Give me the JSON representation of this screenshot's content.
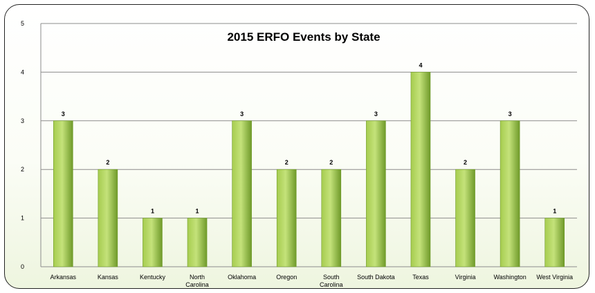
{
  "chart_data": {
    "type": "bar",
    "title": "2015 ERFO Events by State",
    "categories": [
      "Arkansas",
      "Kansas",
      "Kentucky",
      "North Carolina",
      "Oklahoma",
      "Oregon",
      "South Carolina",
      "South Dakota",
      "Texas",
      "Virginia",
      "Washington",
      "West Virginia"
    ],
    "category_label_lines": [
      [
        "Arkansas"
      ],
      [
        "Kansas"
      ],
      [
        "Kentucky"
      ],
      [
        "North",
        "Carolina"
      ],
      [
        "Oklahoma"
      ],
      [
        "Oregon"
      ],
      [
        "South",
        "Carolina"
      ],
      [
        "South Dakota"
      ],
      [
        "Texas"
      ],
      [
        "Virginia"
      ],
      [
        "Washington"
      ],
      [
        "West Virginia"
      ]
    ],
    "values": [
      3,
      2,
      1,
      1,
      3,
      2,
      2,
      3,
      4,
      2,
      3,
      1
    ],
    "data_labels": [
      "3",
      "2",
      "1",
      "1",
      "3",
      "2",
      "2",
      "3",
      "4",
      "2",
      "3",
      "1"
    ],
    "ylim": [
      0,
      5
    ],
    "yticks": [
      "0",
      "1",
      "2",
      "3",
      "4",
      "5"
    ],
    "grid": true,
    "legend": "none",
    "colors": {
      "bar_light": "#c4e27a",
      "bar_mid": "#a6cc4f",
      "bar_dark": "#6f9a2a",
      "gridline": "#8c8c8c",
      "frame": "#222222"
    }
  }
}
